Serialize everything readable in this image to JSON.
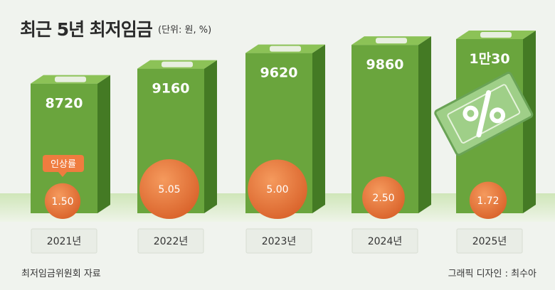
{
  "title": "최근 5년 최저임금",
  "unit_note": "(단위: 원, %)",
  "source": "최저임금위원회 자료",
  "credit": "그래픽 디자인 : 최수아",
  "badge_label": "인상률",
  "chart_data": {
    "type": "bar",
    "categories": [
      "2021년",
      "2022년",
      "2023년",
      "2024년",
      "2025년"
    ],
    "values": [
      8720,
      9160,
      9620,
      9860,
      10030
    ],
    "value_labels": [
      "8720",
      "9160",
      "9620",
      "9860",
      "1만30"
    ],
    "series": [
      {
        "name": "최저임금",
        "values": [
          8720,
          9160,
          9620,
          9860,
          10030
        ]
      },
      {
        "name": "인상률",
        "values": [
          1.5,
          5.05,
          5.0,
          2.5,
          1.72
        ],
        "labels": [
          "1.50",
          "5.05",
          "5.00",
          "2.50",
          "1.72"
        ]
      }
    ],
    "colors": {
      "bar_front": "#6aa53d",
      "bar_side": "#447a24",
      "bar_top": "#8cc257",
      "circle": "#ec7a3c",
      "label_box": "#e9ede6"
    }
  }
}
